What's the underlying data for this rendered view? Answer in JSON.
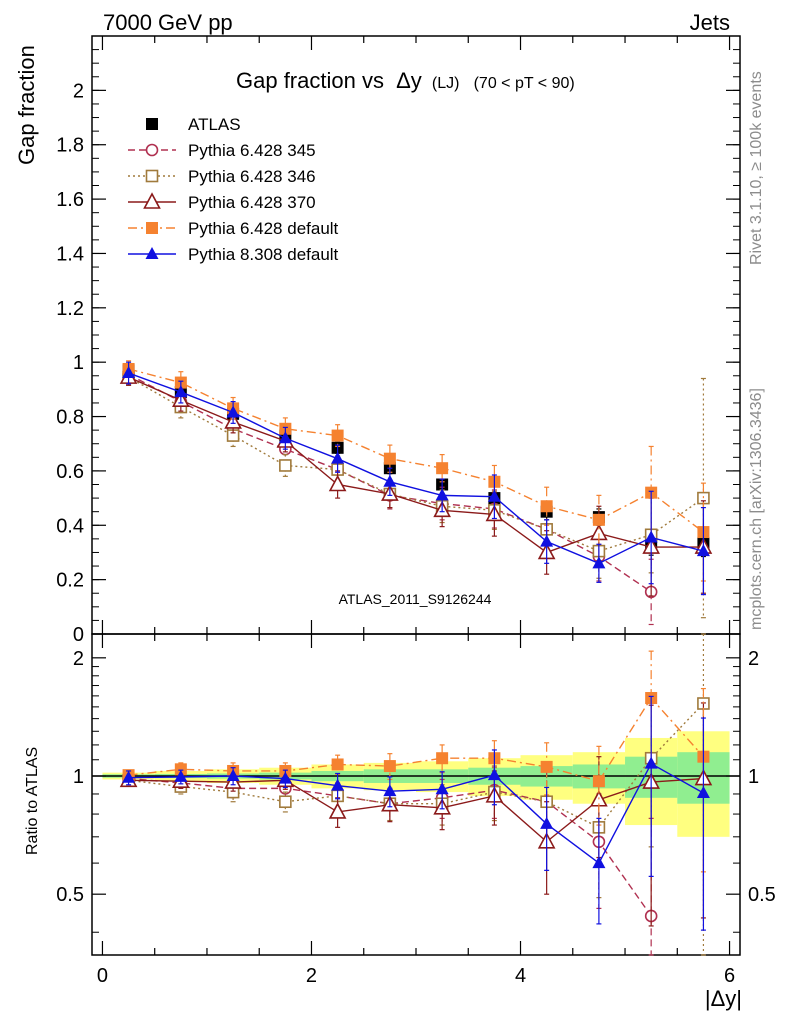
{
  "header": {
    "left": "7000 GeV pp",
    "right": "Jets"
  },
  "side_labels": {
    "top": "Rivet 3.1.10, ≥ 100k events",
    "bottom": "mcplots.cern.ch [arXiv:1306.3436]"
  },
  "watermark": "ATLAS_2011_S9126244",
  "chart_data": [
    {
      "panel": "main",
      "type": "scatter",
      "title_main": "Gap fraction vs",
      "title_var": "Δy",
      "title_sub": "(LJ)",
      "title_range": "(70 < pT <  90)",
      "ylabel": "Gap fraction",
      "xlim": [
        -0.1,
        6.1
      ],
      "ylim": [
        0,
        2.2
      ],
      "x_ticks": [
        0,
        2,
        4,
        6
      ],
      "y_ticks": [
        {
          "v": 0,
          "t": "0"
        },
        {
          "v": 0.2,
          "t": "0.2"
        },
        {
          "v": 0.4,
          "t": "0.4"
        },
        {
          "v": 0.6,
          "t": "0.6"
        },
        {
          "v": 0.8,
          "t": "0.8"
        },
        {
          "v": 1.0,
          "t": "1"
        },
        {
          "v": 1.2,
          "t": "1.2"
        },
        {
          "v": 1.4,
          "t": "1.4"
        },
        {
          "v": 1.6,
          "t": "1.6"
        },
        {
          "v": 1.8,
          "t": "1.8"
        },
        {
          "v": 2.0,
          "t": "2"
        }
      ],
      "legend_position": "top-left",
      "x": [
        0.25,
        0.75,
        1.25,
        1.75,
        2.25,
        2.75,
        3.25,
        3.75,
        4.25,
        4.75,
        5.25,
        5.75
      ],
      "series": [
        {
          "name": "ATLAS",
          "color": "#000000",
          "marker": "square-filled",
          "line": "none",
          "values": [
            0.97,
            0.89,
            0.81,
            0.73,
            0.685,
            0.61,
            0.55,
            0.5,
            0.45,
            0.43,
            0.33,
            0.335
          ],
          "err": [
            0.02,
            0.02,
            0.02,
            0.02,
            0.02,
            0.02,
            0.02,
            0.02,
            0.03,
            0.03,
            0.04,
            0.05
          ]
        },
        {
          "name": "Pythia 6.428 345",
          "color": "#b03050",
          "marker": "circle-open",
          "line": "dashed",
          "values": [
            0.955,
            0.855,
            0.755,
            0.68,
            0.605,
            0.51,
            0.48,
            0.46,
            0.385,
            0.285,
            0.155,
            null
          ],
          "err": [
            0.03,
            0.04,
            0.04,
            0.04,
            0.04,
            0.05,
            0.06,
            0.07,
            0.08,
            0.09,
            0.12,
            null
          ]
        },
        {
          "name": "Pythia 6.428 346",
          "color": "#a07a3c",
          "marker": "square-open",
          "line": "dotted",
          "values": [
            0.945,
            0.835,
            0.73,
            0.62,
            0.605,
            0.515,
            0.47,
            0.455,
            0.385,
            0.305,
            0.365,
            0.5
          ],
          "err": [
            0.03,
            0.04,
            0.04,
            0.04,
            0.05,
            0.05,
            0.06,
            0.07,
            0.09,
            0.1,
            0.14,
            0.44
          ]
        },
        {
          "name": "Pythia 6.428 370",
          "color": "#8b1a1a",
          "marker": "triangle-open",
          "line": "solid",
          "values": [
            0.945,
            0.86,
            0.78,
            0.71,
            0.55,
            0.515,
            0.455,
            0.44,
            0.3,
            0.37,
            0.32,
            0.32
          ],
          "err": [
            0.03,
            0.04,
            0.04,
            0.04,
            0.05,
            0.05,
            0.06,
            0.08,
            0.08,
            0.1,
            0.18,
            0.17
          ]
        },
        {
          "name": "Pythia 6.428 default",
          "color": "#f58230",
          "marker": "square-filled",
          "line": "dashdot",
          "values": [
            0.975,
            0.925,
            0.83,
            0.755,
            0.73,
            0.645,
            0.61,
            0.56,
            0.47,
            0.42,
            0.52,
            0.375
          ],
          "err": [
            0.03,
            0.04,
            0.04,
            0.04,
            0.04,
            0.05,
            0.05,
            0.06,
            0.07,
            0.09,
            0.17,
            0.18
          ]
        },
        {
          "name": "Pythia 8.308 default",
          "color": "#1010e0",
          "marker": "triangle-filled",
          "line": "solid",
          "values": [
            0.96,
            0.89,
            0.815,
            0.72,
            0.645,
            0.56,
            0.51,
            0.505,
            0.34,
            0.26,
            0.355,
            0.305
          ],
          "err": [
            0.04,
            0.04,
            0.04,
            0.04,
            0.05,
            0.05,
            0.06,
            0.08,
            0.08,
            0.07,
            0.17,
            0.16
          ]
        }
      ]
    },
    {
      "panel": "ratio",
      "type": "scatter",
      "ylabel": "Ratio to ATLAS",
      "xlabel": "|Δy|",
      "xlim": [
        -0.1,
        6.1
      ],
      "ylim": [
        0.35,
        2.3
      ],
      "x_ticks": [
        {
          "v": 0,
          "t": "0"
        },
        {
          "v": 2,
          "t": "2"
        },
        {
          "v": 4,
          "t": "4"
        },
        {
          "v": 6,
          "t": "6"
        }
      ],
      "y_ticks": [
        {
          "v": 0.5,
          "t": "0.5"
        },
        {
          "v": 1,
          "t": "1"
        },
        {
          "v": 2,
          "t": "2"
        }
      ],
      "y_scale": "log",
      "x": [
        0.25,
        0.75,
        1.25,
        1.75,
        2.25,
        2.75,
        3.25,
        3.75,
        4.25,
        4.75,
        5.25,
        5.75
      ],
      "bands": {
        "x_edges": [
          0,
          0.5,
          1.0,
          1.5,
          2.0,
          2.5,
          3.0,
          3.5,
          4.0,
          4.5,
          5.0,
          5.5,
          6.0
        ],
        "green_half": [
          0.01,
          0.012,
          0.015,
          0.02,
          0.03,
          0.04,
          0.04,
          0.05,
          0.06,
          0.07,
          0.12,
          0.15
        ],
        "yellow_half": [
          0.02,
          0.03,
          0.04,
          0.05,
          0.07,
          0.08,
          0.09,
          0.11,
          0.13,
          0.15,
          0.25,
          0.3
        ],
        "green_color": "#90ee90",
        "yellow_color": "#ffff80"
      },
      "series": [
        {
          "name": "Pythia 6.428 345",
          "values": [
            0.985,
            0.96,
            0.93,
            0.93,
            0.89,
            0.85,
            0.88,
            0.92,
            0.86,
            0.68,
            0.44,
            null
          ],
          "err": [
            0.03,
            0.04,
            0.05,
            0.05,
            0.06,
            0.08,
            0.1,
            0.14,
            0.18,
            0.22,
            0.34,
            null
          ]
        },
        {
          "name": "Pythia 6.428 346",
          "values": [
            0.975,
            0.94,
            0.91,
            0.86,
            0.89,
            0.85,
            0.85,
            0.91,
            0.86,
            0.74,
            1.11,
            1.53
          ],
          "err": [
            0.03,
            0.04,
            0.05,
            0.05,
            0.07,
            0.08,
            0.1,
            0.14,
            0.2,
            0.25,
            0.45,
            1.3
          ]
        },
        {
          "name": "Pythia 6.428 370",
          "values": [
            0.975,
            0.97,
            0.965,
            0.975,
            0.81,
            0.845,
            0.83,
            0.89,
            0.68,
            0.87,
            0.965,
            0.985
          ],
          "err": [
            0.03,
            0.04,
            0.05,
            0.05,
            0.07,
            0.08,
            0.1,
            0.14,
            0.18,
            0.25,
            0.55,
            0.55
          ]
        },
        {
          "name": "Pythia 6.428 default",
          "values": [
            1.005,
            1.04,
            1.03,
            1.03,
            1.07,
            1.06,
            1.11,
            1.11,
            1.055,
            0.97,
            1.58,
            1.12
          ],
          "err": [
            0.03,
            0.04,
            0.05,
            0.05,
            0.06,
            0.08,
            0.09,
            0.12,
            0.16,
            0.22,
            0.5,
            0.55
          ]
        },
        {
          "name": "Pythia 8.308 default",
          "values": [
            0.99,
            0.995,
            1.0,
            0.985,
            0.945,
            0.915,
            0.925,
            1.005,
            0.755,
            0.6,
            1.075,
            0.905
          ],
          "err": [
            0.04,
            0.04,
            0.05,
            0.05,
            0.07,
            0.08,
            0.1,
            0.16,
            0.18,
            0.18,
            0.52,
            0.5
          ]
        }
      ]
    }
  ]
}
